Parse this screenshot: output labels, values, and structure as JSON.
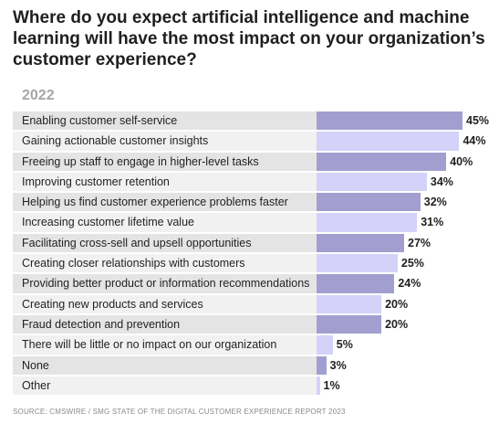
{
  "title": "Where do you expect artificial intelligence and machine learning will have the most impact on your organization’s customer experience?",
  "source": "SOURCE: CMSWIRE / SMG STATE OF THE DIGITAL CUSTOMER EXPERIENCE REPORT 2023",
  "colors": {
    "bar_dark": "#a29fd0",
    "bar_light": "#d4d2f8",
    "label_bg_dark": "#e4e4e4",
    "label_bg_light": "#f1f1f1"
  },
  "chart_data": {
    "type": "bar",
    "orientation": "horizontal",
    "series_label": "2022",
    "unit": "%",
    "xlim": [
      0,
      45
    ],
    "categories": [
      "Enabling customer self-service",
      "Gaining actionable customer insights",
      "Freeing up staff to engage in higher-level tasks",
      "Improving customer retention",
      "Helping us find customer experience problems faster",
      "Increasing customer lifetime value",
      "Facilitating cross-sell and upsell opportunities",
      "Creating closer relationships with customers",
      "Providing better product or information recommendations",
      "Creating new products and services",
      "Fraud detection and prevention",
      "There will be little or no impact on our organization",
      "None",
      "Other"
    ],
    "values": [
      45,
      44,
      40,
      34,
      32,
      31,
      27,
      25,
      24,
      20,
      20,
      5,
      3,
      1
    ],
    "value_labels": [
      "45%",
      "44%",
      "40%",
      "34%",
      "32%",
      "31%",
      "27%",
      "25%",
      "24%",
      "20%",
      "20%",
      "5%",
      "3%",
      "1%"
    ]
  }
}
